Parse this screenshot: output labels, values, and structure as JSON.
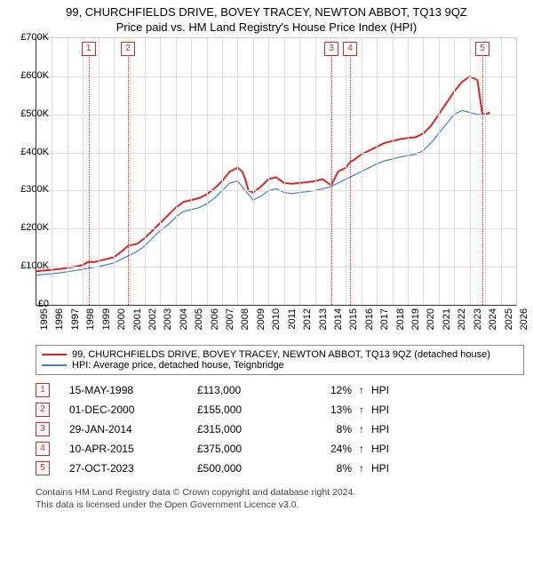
{
  "title_line1": "99, CHURCHFIELDS DRIVE, BOVEY TRACEY, NEWTON ABBOT, TQ13 9QZ",
  "title_line2": "Price paid vs. HM Land Registry's House Price Index (HPI)",
  "chart": {
    "type": "line",
    "xlim": [
      1995,
      2026
    ],
    "ylim": [
      0,
      700000
    ],
    "ytick_step": 100000,
    "yticks": [
      "£0",
      "£100K",
      "£200K",
      "£300K",
      "£400K",
      "£500K",
      "£600K",
      "£700K"
    ],
    "xticks": [
      1995,
      1996,
      1997,
      1998,
      1999,
      2000,
      2001,
      2002,
      2003,
      2004,
      2005,
      2006,
      2007,
      2008,
      2009,
      2010,
      2011,
      2012,
      2013,
      2014,
      2015,
      2016,
      2017,
      2018,
      2019,
      2020,
      2021,
      2022,
      2023,
      2024,
      2025,
      2026
    ],
    "grid_color": "#dddddd",
    "axis_color": "#333333",
    "background_color": "#ffffff",
    "series": [
      {
        "name": "price_paid",
        "label": "99, CHURCHFIELDS DRIVE, BOVEY TRACEY, NEWTON ABBOT, TQ13 9QZ (detached house)",
        "color": "#d62728",
        "line_width": 2,
        "data": [
          [
            1995.0,
            88000
          ],
          [
            1995.5,
            90000
          ],
          [
            1996.0,
            92000
          ],
          [
            1996.5,
            94000
          ],
          [
            1997.0,
            97000
          ],
          [
            1997.5,
            100000
          ],
          [
            1998.0,
            105000
          ],
          [
            1998.37,
            113000
          ],
          [
            1998.7,
            112000
          ],
          [
            1999.0,
            115000
          ],
          [
            1999.5,
            120000
          ],
          [
            2000.0,
            125000
          ],
          [
            2000.5,
            140000
          ],
          [
            2000.92,
            155000
          ],
          [
            2001.5,
            160000
          ],
          [
            2002.0,
            175000
          ],
          [
            2002.5,
            195000
          ],
          [
            2003.0,
            215000
          ],
          [
            2003.5,
            235000
          ],
          [
            2004.0,
            255000
          ],
          [
            2004.5,
            270000
          ],
          [
            2005.0,
            275000
          ],
          [
            2005.5,
            280000
          ],
          [
            2006.0,
            290000
          ],
          [
            2006.5,
            305000
          ],
          [
            2007.0,
            325000
          ],
          [
            2007.5,
            350000
          ],
          [
            2008.0,
            360000
          ],
          [
            2008.3,
            350000
          ],
          [
            2008.5,
            330000
          ],
          [
            2008.7,
            300000
          ],
          [
            2009.0,
            295000
          ],
          [
            2009.5,
            310000
          ],
          [
            2010.0,
            330000
          ],
          [
            2010.5,
            335000
          ],
          [
            2011.0,
            320000
          ],
          [
            2011.5,
            318000
          ],
          [
            2012.0,
            320000
          ],
          [
            2012.5,
            322000
          ],
          [
            2013.0,
            325000
          ],
          [
            2013.5,
            330000
          ],
          [
            2014.0,
            315000
          ],
          [
            2014.07,
            315000
          ],
          [
            2014.5,
            350000
          ],
          [
            2015.0,
            360000
          ],
          [
            2015.27,
            375000
          ],
          [
            2015.5,
            380000
          ],
          [
            2016.0,
            395000
          ],
          [
            2016.5,
            405000
          ],
          [
            2017.0,
            415000
          ],
          [
            2017.5,
            425000
          ],
          [
            2018.0,
            430000
          ],
          [
            2018.5,
            435000
          ],
          [
            2019.0,
            438000
          ],
          [
            2019.5,
            440000
          ],
          [
            2020.0,
            450000
          ],
          [
            2020.5,
            470000
          ],
          [
            2021.0,
            500000
          ],
          [
            2021.5,
            530000
          ],
          [
            2022.0,
            560000
          ],
          [
            2022.5,
            585000
          ],
          [
            2023.0,
            600000
          ],
          [
            2023.5,
            590000
          ],
          [
            2023.82,
            500000
          ],
          [
            2024.0,
            500000
          ],
          [
            2024.3,
            505000
          ]
        ]
      },
      {
        "name": "hpi",
        "label": "HPI: Average price, detached house, Teignbridge",
        "color": "#4a7ebb",
        "line_width": 1.2,
        "data": [
          [
            1995.0,
            78000
          ],
          [
            1995.5,
            80000
          ],
          [
            1996.0,
            82000
          ],
          [
            1996.5,
            84000
          ],
          [
            1997.0,
            87000
          ],
          [
            1997.5,
            90000
          ],
          [
            1998.0,
            93000
          ],
          [
            1998.5,
            97000
          ],
          [
            1999.0,
            100000
          ],
          [
            1999.5,
            105000
          ],
          [
            2000.0,
            110000
          ],
          [
            2000.5,
            120000
          ],
          [
            2001.0,
            130000
          ],
          [
            2001.5,
            140000
          ],
          [
            2002.0,
            155000
          ],
          [
            2002.5,
            175000
          ],
          [
            2003.0,
            195000
          ],
          [
            2003.5,
            210000
          ],
          [
            2004.0,
            230000
          ],
          [
            2004.5,
            245000
          ],
          [
            2005.0,
            250000
          ],
          [
            2005.5,
            255000
          ],
          [
            2006.0,
            265000
          ],
          [
            2006.5,
            280000
          ],
          [
            2007.0,
            300000
          ],
          [
            2007.5,
            320000
          ],
          [
            2008.0,
            325000
          ],
          [
            2008.5,
            300000
          ],
          [
            2009.0,
            275000
          ],
          [
            2009.5,
            285000
          ],
          [
            2010.0,
            300000
          ],
          [
            2010.5,
            305000
          ],
          [
            2011.0,
            295000
          ],
          [
            2011.5,
            292000
          ],
          [
            2012.0,
            295000
          ],
          [
            2012.5,
            297000
          ],
          [
            2013.0,
            300000
          ],
          [
            2013.5,
            305000
          ],
          [
            2014.0,
            310000
          ],
          [
            2014.5,
            320000
          ],
          [
            2015.0,
            330000
          ],
          [
            2015.5,
            340000
          ],
          [
            2016.0,
            350000
          ],
          [
            2016.5,
            360000
          ],
          [
            2017.0,
            370000
          ],
          [
            2017.5,
            378000
          ],
          [
            2018.0,
            383000
          ],
          [
            2018.5,
            388000
          ],
          [
            2019.0,
            392000
          ],
          [
            2019.5,
            395000
          ],
          [
            2020.0,
            405000
          ],
          [
            2020.5,
            425000
          ],
          [
            2021.0,
            450000
          ],
          [
            2021.5,
            475000
          ],
          [
            2022.0,
            500000
          ],
          [
            2022.5,
            510000
          ],
          [
            2023.0,
            505000
          ],
          [
            2023.5,
            500000
          ],
          [
            2024.0,
            498000
          ],
          [
            2024.3,
            500000
          ]
        ]
      }
    ],
    "markers": [
      {
        "n": "1",
        "x": 1998.37,
        "color": "#d62728"
      },
      {
        "n": "2",
        "x": 2000.92,
        "color": "#d62728"
      },
      {
        "n": "3",
        "x": 2014.07,
        "color": "#d62728"
      },
      {
        "n": "4",
        "x": 2015.27,
        "color": "#d62728"
      },
      {
        "n": "5",
        "x": 2023.82,
        "color": "#d62728"
      }
    ]
  },
  "legend": [
    {
      "color": "#d62728",
      "label": "99, CHURCHFIELDS DRIVE, BOVEY TRACEY, NEWTON ABBOT, TQ13 9QZ (detached house)"
    },
    {
      "color": "#4a7ebb",
      "label": "HPI: Average price, detached house, Teignbridge"
    }
  ],
  "sales": [
    {
      "n": "1",
      "date": "15-MAY-1998",
      "price": "£113,000",
      "delta": "12%",
      "arrow": "↑",
      "vs": "HPI",
      "color": "#d62728"
    },
    {
      "n": "2",
      "date": "01-DEC-2000",
      "price": "£155,000",
      "delta": "13%",
      "arrow": "↑",
      "vs": "HPI",
      "color": "#d62728"
    },
    {
      "n": "3",
      "date": "29-JAN-2014",
      "price": "£315,000",
      "delta": "8%",
      "arrow": "↑",
      "vs": "HPI",
      "color": "#d62728"
    },
    {
      "n": "4",
      "date": "10-APR-2015",
      "price": "£375,000",
      "delta": "24%",
      "arrow": "↑",
      "vs": "HPI",
      "color": "#d62728"
    },
    {
      "n": "5",
      "date": "27-OCT-2023",
      "price": "£500,000",
      "delta": "8%",
      "arrow": "↑",
      "vs": "HPI",
      "color": "#d62728"
    }
  ],
  "footer_line1": "Contains HM Land Registry data © Crown copyright and database right 2024.",
  "footer_line2": "This data is licensed under the Open Government Licence v3.0."
}
